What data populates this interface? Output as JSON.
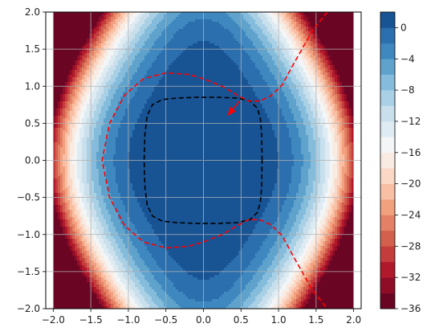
{
  "chart_data": {
    "type": "contour",
    "title": "",
    "xlabel": "",
    "ylabel": "",
    "xlim": [
      -2.1,
      2.1
    ],
    "ylim": [
      -2.0,
      2.0
    ],
    "xticks": [
      -2.0,
      -1.5,
      -1.0,
      -0.5,
      0.0,
      0.5,
      1.0,
      1.5,
      2.0
    ],
    "xtick_labels": [
      "−2.0",
      "−1.5",
      "−1.0",
      "−0.5",
      "0.0",
      "0.5",
      "1.0",
      "1.5",
      "2.0"
    ],
    "yticks": [
      -2.0,
      -1.5,
      -1.0,
      -0.5,
      0.0,
      0.5,
      1.0,
      1.5,
      2.0
    ],
    "ytick_labels": [
      "−2.0",
      "−1.5",
      "−1.0",
      "−0.5",
      "0.0",
      "0.5",
      "1.0",
      "1.5",
      "2.0"
    ],
    "grid": true,
    "filled_contours": {
      "field": "z = 2 - 2*x^4 - 3.5*x^2*y^2 - 0.3*y^4",
      "levels": [
        -36,
        -34,
        -32,
        -30,
        -28,
        -26,
        -24,
        -22,
        -20,
        -18,
        -16,
        -14,
        -12,
        -10,
        -8,
        -6,
        -4,
        -2,
        0,
        2
      ],
      "colormap": "RdBu"
    },
    "colorbar": {
      "ticks": [
        0,
        -4,
        -8,
        -12,
        -16,
        -20,
        -24,
        -28,
        -32,
        -36
      ],
      "tick_labels": [
        "0",
        "−4",
        "−8",
        "−12",
        "−16",
        "−20",
        "−24",
        "−28",
        "−32",
        "−36"
      ],
      "range": [
        -36,
        2
      ],
      "colors": [
        "#6a0624",
        "#8f0d27",
        "#b0182b",
        "#c43c3c",
        "#d35f4d",
        "#e48066",
        "#f2a17f",
        "#f8bfa4",
        "#fad8c5",
        "#f9ebe2",
        "#f3f5f6",
        "#deebf2",
        "#c9e0ec",
        "#aad0e5",
        "#85bcdb",
        "#5fa3cd",
        "#3f88bf",
        "#2c6fae",
        "#185394",
        "#0c3c76"
      ]
    },
    "series": [
      {
        "style": "dashed-black",
        "color": "#000000",
        "points": [
          [
            0.78,
            0.0
          ],
          [
            0.775,
            0.35
          ],
          [
            0.76,
            0.55
          ],
          [
            0.72,
            0.7
          ],
          [
            0.62,
            0.8
          ],
          [
            0.45,
            0.84
          ],
          [
            0.2,
            0.85
          ],
          [
            -0.1,
            0.85
          ],
          [
            -0.35,
            0.84
          ],
          [
            -0.55,
            0.82
          ],
          [
            -0.68,
            0.75
          ],
          [
            -0.75,
            0.6
          ],
          [
            -0.78,
            0.35
          ],
          [
            -0.79,
            0.0
          ],
          [
            -0.78,
            -0.35
          ],
          [
            -0.75,
            -0.6
          ],
          [
            -0.68,
            -0.75
          ],
          [
            -0.55,
            -0.82
          ],
          [
            -0.35,
            -0.84
          ],
          [
            -0.1,
            -0.85
          ],
          [
            0.2,
            -0.85
          ],
          [
            0.45,
            -0.84
          ],
          [
            0.62,
            -0.8
          ],
          [
            0.72,
            -0.7
          ],
          [
            0.76,
            -0.55
          ],
          [
            0.775,
            -0.35
          ],
          [
            0.78,
            0.0
          ]
        ]
      },
      {
        "style": "dashed-red",
        "color": "#ff0000",
        "points": [
          [
            1.65,
            2.0
          ],
          [
            1.45,
            1.75
          ],
          [
            1.2,
            1.3
          ],
          [
            1.05,
            1.02
          ],
          [
            0.9,
            0.87
          ],
          [
            0.75,
            0.8
          ],
          [
            0.6,
            0.8
          ],
          [
            0.45,
            0.88
          ],
          [
            0.25,
            1.0
          ],
          [
            0.0,
            1.1
          ],
          [
            -0.2,
            1.16
          ],
          [
            -0.5,
            1.18
          ],
          [
            -0.8,
            1.1
          ],
          [
            -1.05,
            0.88
          ],
          [
            -1.25,
            0.5
          ],
          [
            -1.35,
            0.0
          ],
          [
            -1.25,
            -0.5
          ],
          [
            -1.05,
            -0.88
          ],
          [
            -0.8,
            -1.1
          ],
          [
            -0.5,
            -1.18
          ],
          [
            -0.2,
            -1.16
          ],
          [
            0.0,
            -1.1
          ],
          [
            0.25,
            -1.0
          ],
          [
            0.45,
            -0.88
          ],
          [
            0.6,
            -0.8
          ],
          [
            0.75,
            -0.8
          ],
          [
            0.9,
            -0.87
          ],
          [
            1.05,
            -1.02
          ],
          [
            1.2,
            -1.3
          ],
          [
            1.45,
            -1.75
          ],
          [
            1.65,
            -2.0
          ]
        ]
      }
    ],
    "annotations": [
      {
        "type": "arrow",
        "color": "#ff0000",
        "from": [
          0.48,
          0.8
        ],
        "to": [
          0.32,
          0.6
        ]
      }
    ]
  }
}
